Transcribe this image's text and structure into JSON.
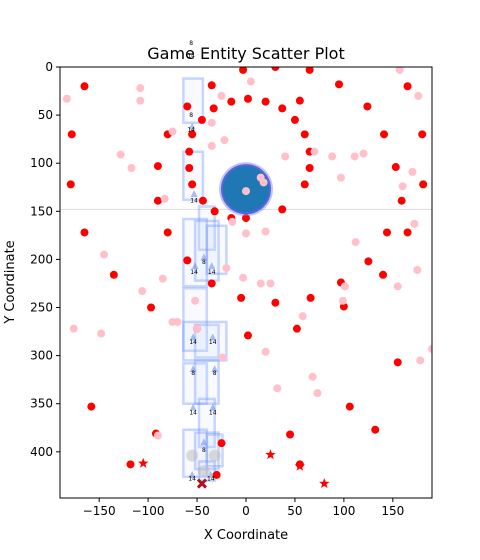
{
  "chart_data": {
    "type": "scatter",
    "title": "Game Entity Scatter Plot",
    "xlabel": "X Coordinate",
    "ylabel": "Y Coordinate",
    "xlim": [
      -190,
      190
    ],
    "ylim": [
      448,
      0
    ],
    "y_inverted": true,
    "xticks": [
      -150,
      -100,
      -50,
      0,
      50,
      100,
      150
    ],
    "yticks": [
      0,
      50,
      100,
      150,
      200,
      250,
      300,
      350,
      400
    ],
    "horizontal_line_y": 148,
    "colors": {
      "red": "#ff0000",
      "pink": "#ffc0cb",
      "blue": "#1f77b4",
      "outline_blue": "#aabbee",
      "crimson": "#b01020",
      "hline": "#dddddd"
    },
    "series": [
      {
        "marker": "dot",
        "color": "red",
        "points": [
          [
            -178,
            70
          ],
          [
            -179,
            122
          ],
          [
            -165,
            20
          ],
          [
            -165,
            172
          ],
          [
            -158,
            353
          ],
          [
            -135,
            216
          ],
          [
            -118,
            413
          ],
          [
            -97,
            250
          ],
          [
            -92,
            381
          ],
          [
            -90,
            103
          ],
          [
            -90,
            139
          ],
          [
            -80,
            70
          ],
          [
            -80,
            172
          ],
          [
            -60,
            201
          ],
          [
            -60,
            41
          ],
          [
            -58,
            88
          ],
          [
            -58,
            105
          ],
          [
            -55,
            70
          ],
          [
            -55,
            122
          ],
          [
            -50,
            272
          ],
          [
            -45,
            55
          ],
          [
            -44,
            139
          ],
          [
            -35,
            19
          ],
          [
            -35,
            225
          ],
          [
            -33,
            43
          ],
          [
            -32,
            150
          ],
          [
            -30,
            424
          ],
          [
            -25,
            391
          ],
          [
            -15,
            36
          ],
          [
            -15,
            157
          ],
          [
            -5,
            240
          ],
          [
            0,
            157
          ],
          [
            2,
            279
          ],
          [
            2,
            33
          ],
          [
            -3,
            3
          ],
          [
            20,
            36
          ],
          [
            30,
            0
          ],
          [
            30,
            245
          ],
          [
            37,
            148
          ],
          [
            37,
            43
          ],
          [
            45,
            382
          ],
          [
            50,
            55
          ],
          [
            52,
            272
          ],
          [
            55,
            413
          ],
          [
            55,
            35
          ],
          [
            60,
            70
          ],
          [
            60,
            122
          ],
          [
            65,
            3
          ],
          [
            65,
            88
          ],
          [
            65,
            105
          ],
          [
            66,
            240
          ],
          [
            95,
            18
          ],
          [
            97,
            224
          ],
          [
            100,
            249
          ],
          [
            106,
            353
          ],
          [
            124,
            41
          ],
          [
            125,
            202
          ],
          [
            132,
            377
          ],
          [
            140,
            216
          ],
          [
            141,
            70
          ],
          [
            144,
            172
          ],
          [
            153,
            104
          ],
          [
            155,
            307
          ],
          [
            159,
            139
          ],
          [
            165,
            20
          ],
          [
            165,
            172
          ],
          [
            180,
            70
          ],
          [
            181,
            122
          ]
        ]
      },
      {
        "marker": "dot",
        "color": "pink",
        "points": [
          [
            -183,
            33
          ],
          [
            -176,
            272
          ],
          [
            -148,
            277
          ],
          [
            -145,
            195
          ],
          [
            -128,
            91
          ],
          [
            -117,
            105
          ],
          [
            -108,
            35
          ],
          [
            -108,
            22
          ],
          [
            -106,
            233
          ],
          [
            -90,
            383
          ],
          [
            -85,
            220
          ],
          [
            -83,
            137
          ],
          [
            -75,
            67
          ],
          [
            -75,
            265
          ],
          [
            -70,
            265
          ],
          [
            -52,
            243
          ],
          [
            -50,
            272
          ],
          [
            -35,
            82
          ],
          [
            -35,
            58
          ],
          [
            -25,
            30
          ],
          [
            -24,
            302
          ],
          [
            -22,
            76
          ],
          [
            -20,
            209
          ],
          [
            -14,
            161
          ],
          [
            -3,
            219
          ],
          [
            0,
            173
          ],
          [
            5,
            15
          ],
          [
            15,
            225
          ],
          [
            20,
            296
          ],
          [
            20,
            171
          ],
          [
            25,
            225
          ],
          [
            32,
            334
          ],
          [
            40,
            93
          ],
          [
            58,
            259
          ],
          [
            68,
            322
          ],
          [
            70,
            88
          ],
          [
            73,
            339
          ],
          [
            88,
            93
          ],
          [
            97,
            115
          ],
          [
            99,
            243
          ],
          [
            101,
            228
          ],
          [
            111,
            93
          ],
          [
            112,
            182
          ],
          [
            120,
            90
          ],
          [
            155,
            228
          ],
          [
            157,
            3
          ],
          [
            160,
            124
          ],
          [
            170,
            109
          ],
          [
            172,
            163
          ],
          [
            175,
            211
          ],
          [
            176,
            30
          ],
          [
            178,
            305
          ],
          [
            190,
            293
          ]
        ]
      },
      {
        "marker": "star",
        "color": "red",
        "points": [
          [
            -105,
            412
          ],
          [
            25,
            403
          ],
          [
            55,
            415
          ],
          [
            80,
            433
          ]
        ]
      },
      {
        "marker": "x",
        "color": "crimson",
        "points": [
          [
            -45,
            433
          ]
        ]
      },
      {
        "marker": "large-circle",
        "color": "blue",
        "points": [
          [
            0,
            127
          ]
        ]
      }
    ],
    "annotations": [
      {
        "text": "8",
        "x": -56,
        "y": -23
      },
      {
        "text": "14",
        "x": -56,
        "y": -10
      },
      {
        "text": "8",
        "x": -56,
        "y": 52
      },
      {
        "text": "14",
        "x": -56,
        "y": 67
      },
      {
        "text": "14",
        "x": -53,
        "y": 141
      },
      {
        "text": "8",
        "x": -43,
        "y": 205
      },
      {
        "text": "14",
        "x": -53,
        "y": 215
      },
      {
        "text": "14",
        "x": -35,
        "y": 215
      },
      {
        "text": "14",
        "x": -54,
        "y": 288
      },
      {
        "text": "14",
        "x": -34,
        "y": 288
      },
      {
        "text": "8",
        "x": -54,
        "y": 320
      },
      {
        "text": "8",
        "x": -32,
        "y": 320
      },
      {
        "text": "14",
        "x": -54,
        "y": 361
      },
      {
        "text": "14",
        "x": -34,
        "y": 361
      },
      {
        "text": "8",
        "x": -43,
        "y": 400
      },
      {
        "text": "14",
        "x": -55,
        "y": 430
      },
      {
        "text": "14",
        "x": -36,
        "y": 430
      }
    ]
  }
}
